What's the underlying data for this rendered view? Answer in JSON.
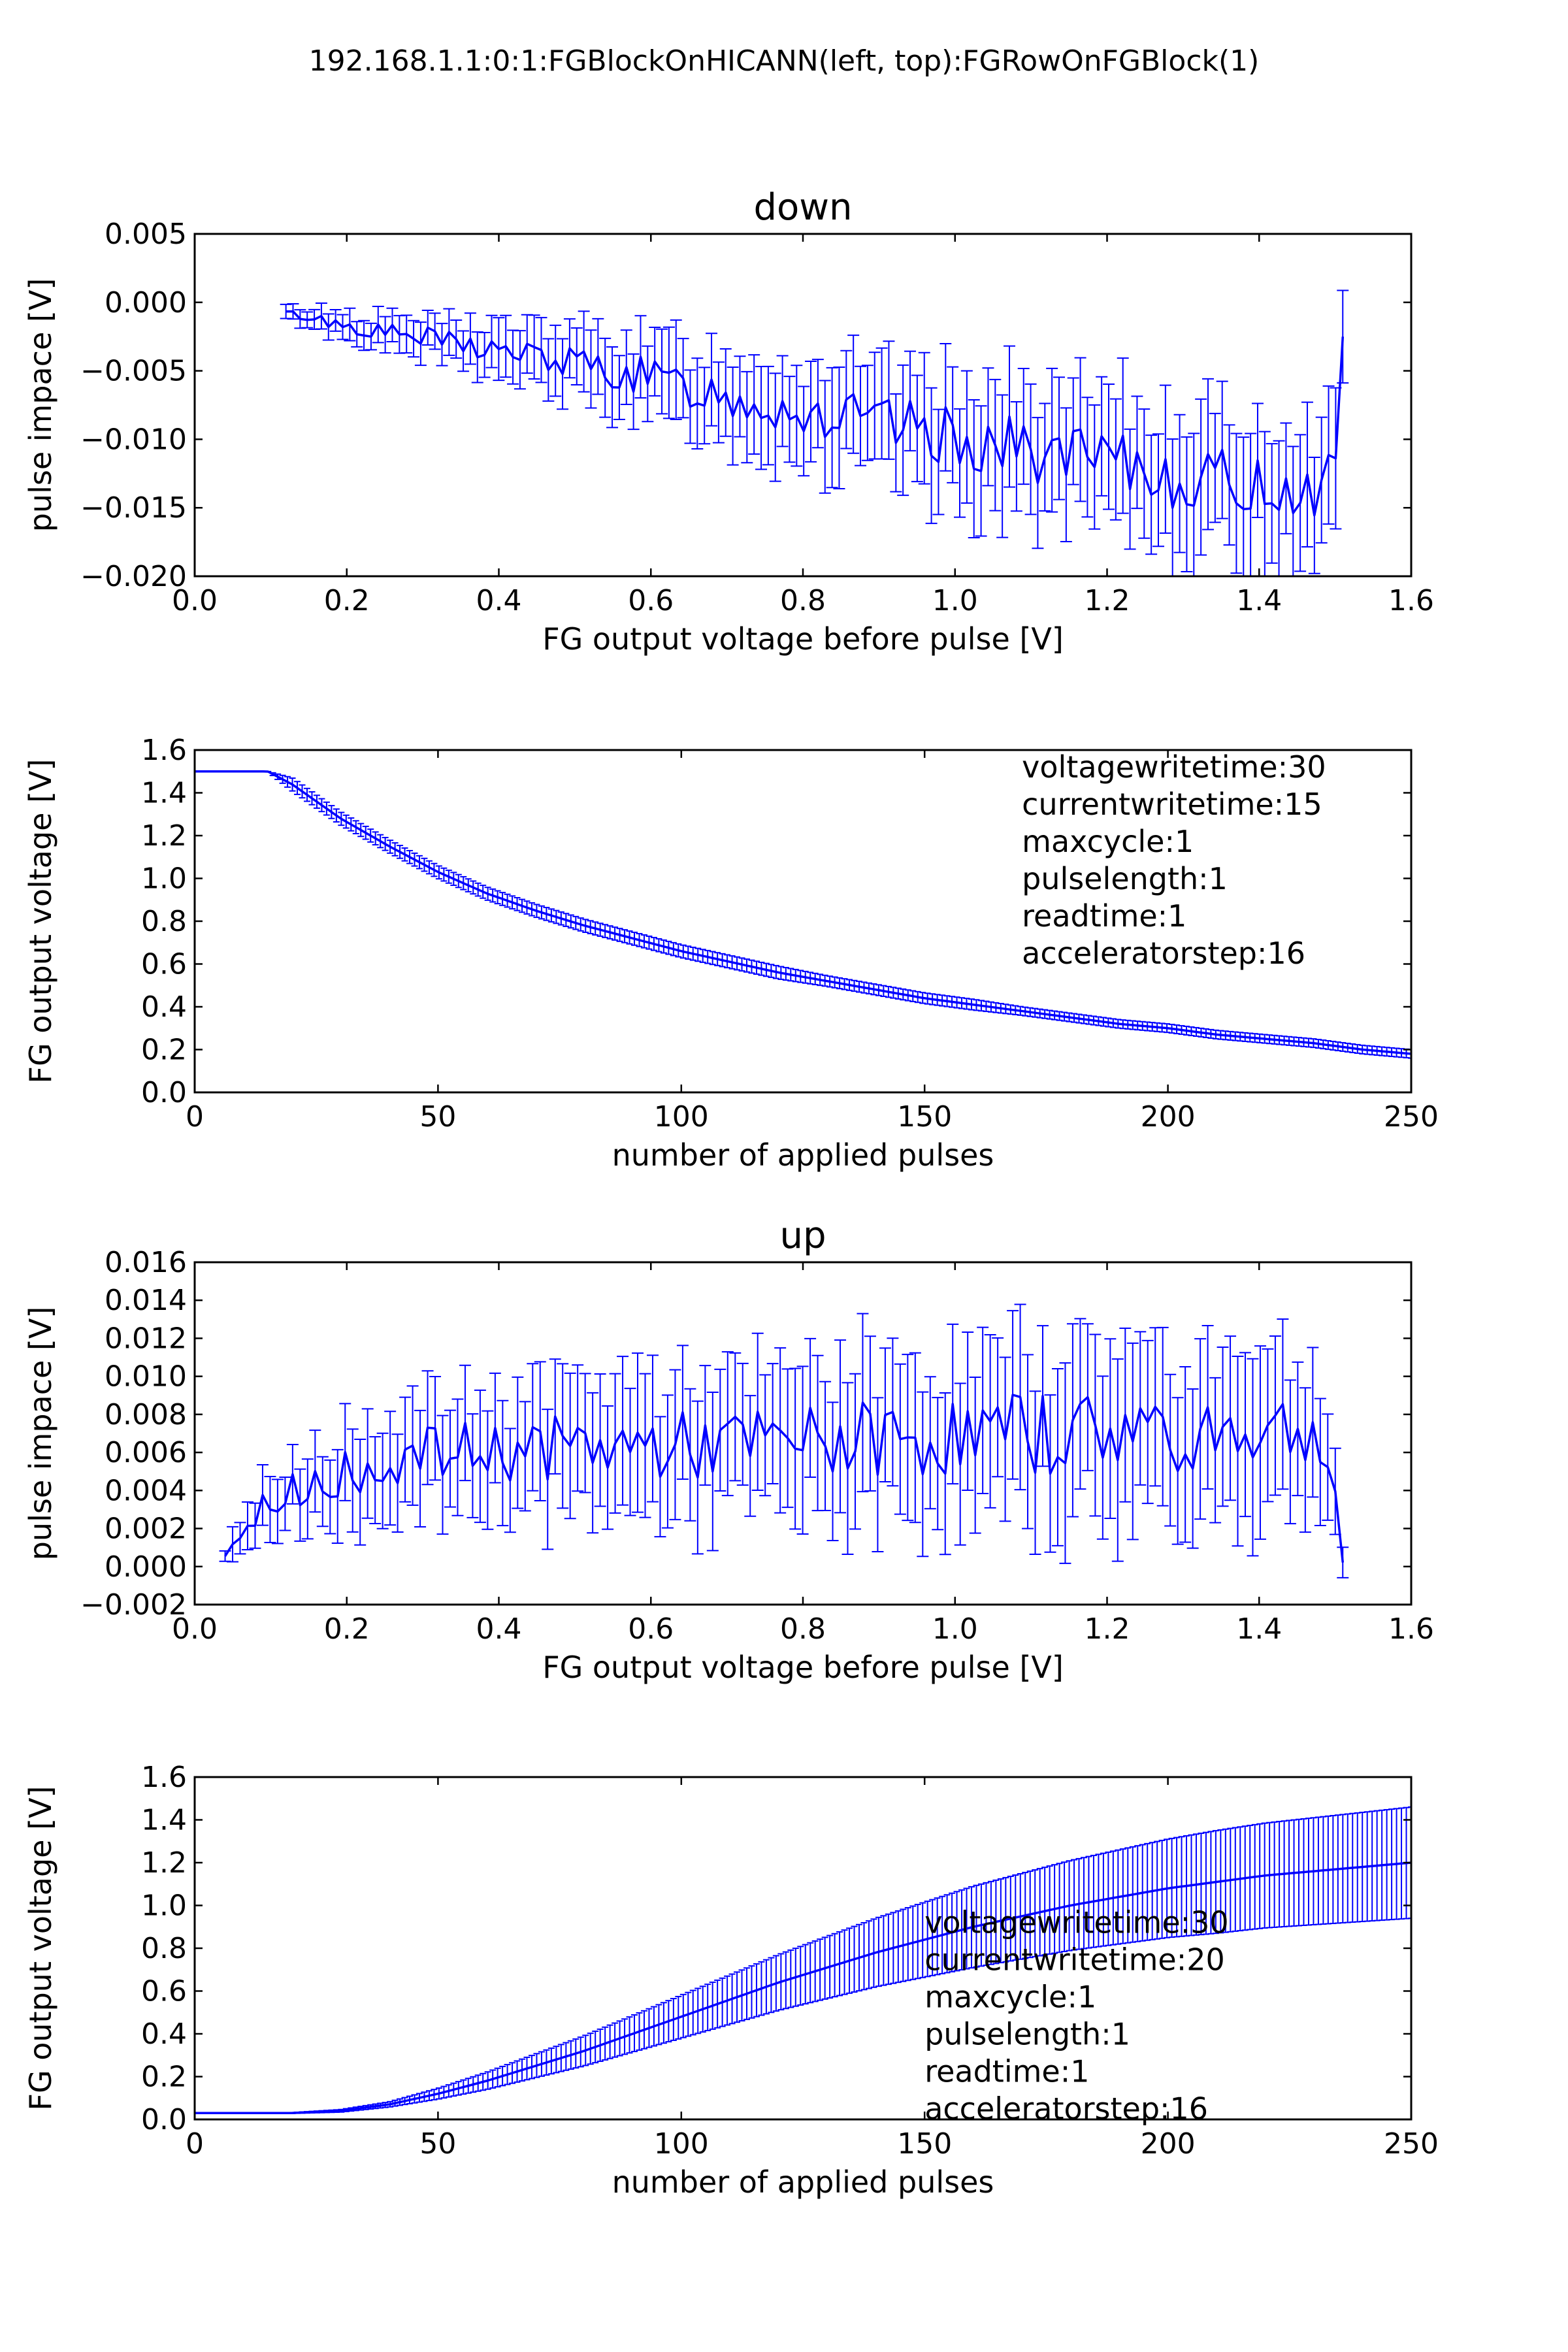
{
  "figure": {
    "suptitle": "192.168.1.1:0:1:FGBlockOnHICANN(left, top):FGRowOnFGBlock(1)"
  },
  "chart_data": [
    {
      "type": "line",
      "title": "down",
      "xlabel": "FG output voltage before pulse [V]",
      "ylabel": "pulse impace [V]",
      "xlim": [
        0.0,
        1.6
      ],
      "ylim": [
        -0.02,
        0.005
      ],
      "xticks": [
        0.0,
        0.2,
        0.4,
        0.6,
        0.8,
        1.0,
        1.2,
        1.4,
        1.6
      ],
      "yticks": [
        -0.02,
        -0.015,
        -0.01,
        -0.005,
        0.0,
        0.005
      ],
      "xtick_labels": [
        "0.0",
        "0.2",
        "0.4",
        "0.6",
        "0.8",
        "1.0",
        "1.2",
        "1.4",
        "1.6"
      ],
      "ytick_labels": [
        "−0.020",
        "−0.015",
        "−0.010",
        "−0.005",
        "0.000",
        "0.005"
      ],
      "grid": false,
      "color": "#0000ff",
      "series": [
        {
          "error_bars": true,
          "points": [
            [
              0.12,
              -0.0008,
              0.0005
            ],
            [
              0.14,
              -0.001,
              0.0006
            ],
            [
              0.16,
              -0.0012,
              0.0008
            ],
            [
              0.2,
              -0.0017,
              0.001
            ],
            [
              0.25,
              -0.0022,
              0.0012
            ],
            [
              0.3,
              -0.0026,
              0.0015
            ],
            [
              0.35,
              -0.003,
              0.0017
            ],
            [
              0.4,
              -0.0035,
              0.002
            ],
            [
              0.45,
              -0.004,
              0.0022
            ],
            [
              0.5,
              -0.0045,
              0.0025
            ],
            [
              0.55,
              -0.005,
              0.0027
            ],
            [
              0.6,
              -0.0056,
              0.003
            ],
            [
              0.65,
              -0.0062,
              0.0032
            ],
            [
              0.7,
              -0.0068,
              0.0034
            ],
            [
              0.75,
              -0.0074,
              0.0036
            ],
            [
              0.8,
              -0.008,
              0.0038
            ],
            [
              0.85,
              -0.0085,
              0.004
            ],
            [
              0.9,
              -0.009,
              0.0042
            ],
            [
              0.95,
              -0.0094,
              0.0043
            ],
            [
              1.0,
              -0.0099,
              0.0044
            ],
            [
              1.05,
              -0.0104,
              0.0045
            ],
            [
              1.1,
              -0.0109,
              0.0046
            ],
            [
              1.15,
              -0.0114,
              0.0047
            ],
            [
              1.2,
              -0.0119,
              0.0048
            ],
            [
              1.25,
              -0.0124,
              0.0049
            ],
            [
              1.3,
              -0.0128,
              0.0049
            ],
            [
              1.35,
              -0.0131,
              0.0048
            ],
            [
              1.4,
              -0.0134,
              0.0047
            ],
            [
              1.45,
              -0.0136,
              0.0046
            ],
            [
              1.48,
              -0.0137,
              0.0045
            ],
            [
              1.5,
              -0.012,
              0.005
            ],
            [
              1.51,
              -0.0025,
              0.0035
            ]
          ]
        }
      ]
    },
    {
      "type": "line",
      "xlabel": "number of applied pulses",
      "ylabel": "FG output voltage [V]",
      "xlim": [
        0,
        250
      ],
      "ylim": [
        0.0,
        1.6
      ],
      "xticks": [
        0,
        50,
        100,
        150,
        200,
        250
      ],
      "yticks": [
        0.0,
        0.2,
        0.4,
        0.6,
        0.8,
        1.0,
        1.2,
        1.4,
        1.6
      ],
      "xtick_labels": [
        "0",
        "50",
        "100",
        "150",
        "200",
        "250"
      ],
      "ytick_labels": [
        "0.0",
        "0.2",
        "0.4",
        "0.6",
        "0.8",
        "1.0",
        "1.2",
        "1.4",
        "1.6"
      ],
      "grid": false,
      "color": "#0000ff",
      "annotation_lines": [
        "voltagewritetime:30",
        "currentwritetime:15",
        "maxcycle:1",
        "pulselength:1",
        "readtime:1",
        "acceleratorstep:16"
      ],
      "annotation_anchor": [
        170,
        1.52
      ],
      "series": [
        {
          "error_bars": true,
          "points": [
            [
              0,
              1.5,
              0.0
            ],
            [
              15,
              1.5,
              0.0
            ],
            [
              20,
              1.44,
              0.03
            ],
            [
              25,
              1.36,
              0.03
            ],
            [
              30,
              1.28,
              0.03
            ],
            [
              40,
              1.15,
              0.03
            ],
            [
              50,
              1.03,
              0.03
            ],
            [
              60,
              0.93,
              0.03
            ],
            [
              70,
              0.85,
              0.03
            ],
            [
              80,
              0.78,
              0.03
            ],
            [
              90,
              0.72,
              0.03
            ],
            [
              100,
              0.66,
              0.03
            ],
            [
              110,
              0.61,
              0.03
            ],
            [
              120,
              0.56,
              0.03
            ],
            [
              130,
              0.52,
              0.025
            ],
            [
              140,
              0.48,
              0.025
            ],
            [
              150,
              0.44,
              0.025
            ],
            [
              160,
              0.41,
              0.025
            ],
            [
              170,
              0.38,
              0.02
            ],
            [
              180,
              0.35,
              0.02
            ],
            [
              190,
              0.32,
              0.02
            ],
            [
              200,
              0.3,
              0.02
            ],
            [
              210,
              0.27,
              0.02
            ],
            [
              220,
              0.25,
              0.02
            ],
            [
              230,
              0.23,
              0.02
            ],
            [
              240,
              0.2,
              0.02
            ],
            [
              250,
              0.18,
              0.02
            ]
          ]
        }
      ]
    },
    {
      "type": "line",
      "title": "up",
      "xlabel": "FG output voltage before pulse [V]",
      "ylabel": "pulse impace [V]",
      "xlim": [
        0.0,
        1.6
      ],
      "ylim": [
        -0.002,
        0.016
      ],
      "xticks": [
        0.0,
        0.2,
        0.4,
        0.6,
        0.8,
        1.0,
        1.2,
        1.4,
        1.6
      ],
      "yticks": [
        -0.002,
        0.0,
        0.002,
        0.004,
        0.006,
        0.008,
        0.01,
        0.012,
        0.014,
        0.016
      ],
      "xtick_labels": [
        "0.0",
        "0.2",
        "0.4",
        "0.6",
        "0.8",
        "1.0",
        "1.2",
        "1.4",
        "1.6"
      ],
      "ytick_labels": [
        "−0.002",
        "0.000",
        "0.002",
        "0.004",
        "0.006",
        "0.008",
        "0.010",
        "0.012",
        "0.014",
        "0.016"
      ],
      "grid": false,
      "color": "#0000ff",
      "series": [
        {
          "error_bars": true,
          "points": [
            [
              0.04,
              0.0003,
              0.0003
            ],
            [
              0.05,
              0.0012,
              0.0008
            ],
            [
              0.06,
              0.002,
              0.001
            ],
            [
              0.08,
              0.0028,
              0.0013
            ],
            [
              0.1,
              0.0034,
              0.0015
            ],
            [
              0.12,
              0.0038,
              0.0017
            ],
            [
              0.15,
              0.0043,
              0.002
            ],
            [
              0.2,
              0.005,
              0.0023
            ],
            [
              0.25,
              0.0055,
              0.0026
            ],
            [
              0.3,
              0.0058,
              0.0028
            ],
            [
              0.35,
              0.006,
              0.003
            ],
            [
              0.4,
              0.0061,
              0.0031
            ],
            [
              0.45,
              0.0062,
              0.0033
            ],
            [
              0.5,
              0.0062,
              0.0034
            ],
            [
              0.55,
              0.0063,
              0.0035
            ],
            [
              0.6,
              0.0063,
              0.0036
            ],
            [
              0.65,
              0.0063,
              0.0037
            ],
            [
              0.7,
              0.0064,
              0.0038
            ],
            [
              0.75,
              0.0064,
              0.0038
            ],
            [
              0.8,
              0.0065,
              0.0039
            ],
            [
              0.85,
              0.0066,
              0.004
            ],
            [
              0.9,
              0.0067,
              0.0041
            ],
            [
              0.95,
              0.0067,
              0.0041
            ],
            [
              1.0,
              0.0068,
              0.0042
            ],
            [
              1.05,
              0.0069,
              0.0043
            ],
            [
              1.1,
              0.007,
              0.0044
            ],
            [
              1.15,
              0.0071,
              0.0045
            ],
            [
              1.2,
              0.0072,
              0.0046
            ],
            [
              1.25,
              0.0073,
              0.0046
            ],
            [
              1.3,
              0.0073,
              0.0046
            ],
            [
              1.35,
              0.0073,
              0.0045
            ],
            [
              1.4,
              0.0073,
              0.0044
            ],
            [
              1.45,
              0.0072,
              0.004
            ],
            [
              1.48,
              0.0065,
              0.0035
            ],
            [
              1.5,
              0.004,
              0.002
            ],
            [
              1.51,
              0.0002,
              0.0008
            ]
          ]
        }
      ]
    },
    {
      "type": "line",
      "xlabel": "number of applied pulses",
      "ylabel": "FG output voltage [V]",
      "xlim": [
        0,
        250
      ],
      "ylim": [
        0.0,
        1.6
      ],
      "xticks": [
        0,
        50,
        100,
        150,
        200,
        250
      ],
      "yticks": [
        0.0,
        0.2,
        0.4,
        0.6,
        0.8,
        1.0,
        1.2,
        1.4,
        1.6
      ],
      "xtick_labels": [
        "0",
        "50",
        "100",
        "150",
        "200",
        "250"
      ],
      "ytick_labels": [
        "0.0",
        "0.2",
        "0.4",
        "0.6",
        "0.8",
        "1.0",
        "1.2",
        "1.4",
        "1.6"
      ],
      "grid": false,
      "color": "#0000ff",
      "annotation_lines": [
        "voltagewritetime:30",
        "currentwritetime:20",
        "maxcycle:1",
        "pulselength:1",
        "readtime:1",
        "acceleratorstep:16"
      ],
      "annotation_anchor": [
        150,
        0.92
      ],
      "series": [
        {
          "error_bars": true,
          "points": [
            [
              0,
              0.03,
              0.0
            ],
            [
              20,
              0.03,
              0.002
            ],
            [
              30,
              0.04,
              0.006
            ],
            [
              40,
              0.07,
              0.012
            ],
            [
              50,
              0.12,
              0.025
            ],
            [
              60,
              0.18,
              0.04
            ],
            [
              70,
              0.25,
              0.055
            ],
            [
              80,
              0.32,
              0.07
            ],
            [
              90,
              0.4,
              0.085
            ],
            [
              100,
              0.48,
              0.1
            ],
            [
              110,
              0.56,
              0.115
            ],
            [
              120,
              0.64,
              0.13
            ],
            [
              130,
              0.71,
              0.145
            ],
            [
              140,
              0.78,
              0.16
            ],
            [
              150,
              0.84,
              0.175
            ],
            [
              160,
              0.9,
              0.19
            ],
            [
              170,
              0.95,
              0.2
            ],
            [
              180,
              1.0,
              0.21
            ],
            [
              190,
              1.04,
              0.22
            ],
            [
              200,
              1.08,
              0.23
            ],
            [
              210,
              1.11,
              0.24
            ],
            [
              220,
              1.14,
              0.245
            ],
            [
              230,
              1.16,
              0.25
            ],
            [
              240,
              1.18,
              0.255
            ],
            [
              250,
              1.2,
              0.26
            ]
          ]
        }
      ]
    }
  ]
}
